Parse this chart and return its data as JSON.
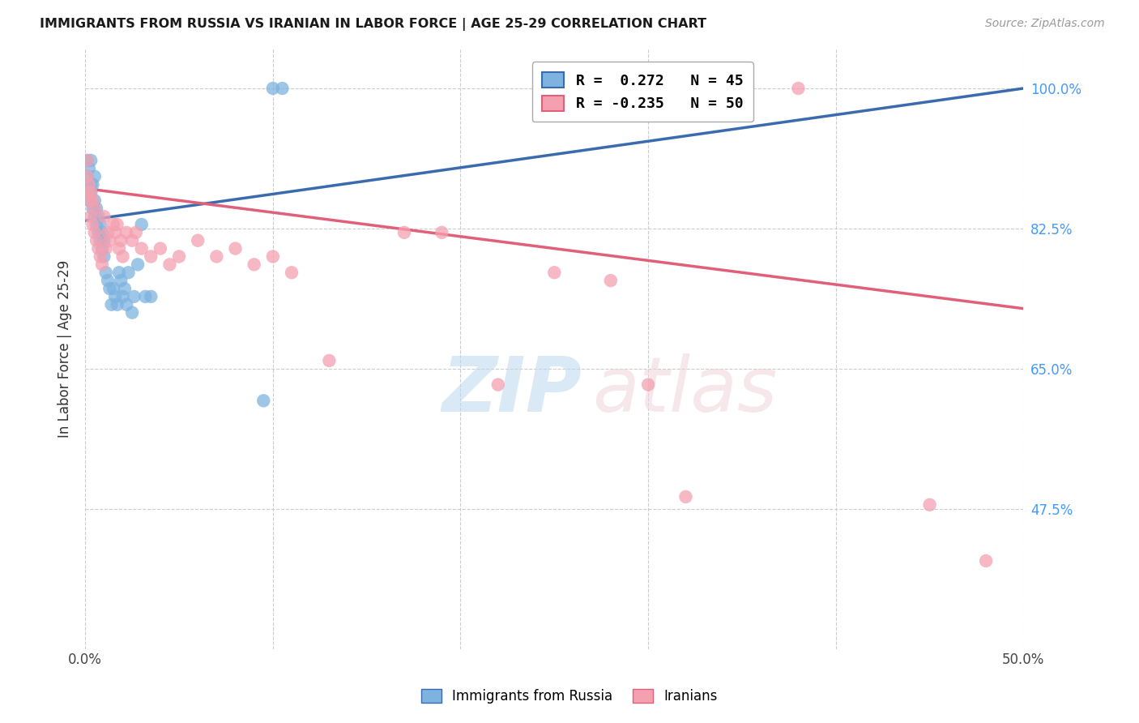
{
  "title": "IMMIGRANTS FROM RUSSIA VS IRANIAN IN LABOR FORCE | AGE 25-29 CORRELATION CHART",
  "source": "Source: ZipAtlas.com",
  "ylabel": "In Labor Force | Age 25-29",
  "xlim": [
    0.0,
    0.5
  ],
  "ylim": [
    0.3,
    1.05
  ],
  "xticks": [
    0.0,
    0.1,
    0.2,
    0.3,
    0.4,
    0.5
  ],
  "xticklabels": [
    "0.0%",
    "",
    "",
    "",
    "",
    "50.0%"
  ],
  "ytick_positions": [
    0.475,
    0.65,
    0.825,
    1.0
  ],
  "ytick_labels": [
    "47.5%",
    "65.0%",
    "82.5%",
    "100.0%"
  ],
  "legend_russia_R": 0.272,
  "legend_russia_N": 45,
  "legend_iran_R": -0.235,
  "legend_iran_N": 50,
  "russia_color": "#7EB3E0",
  "iran_color": "#F4A0B0",
  "russia_line_color": "#3B6BAF",
  "iran_line_color": "#E0607A",
  "russia_trend_x0": 0.0,
  "russia_trend_y0": 0.835,
  "russia_trend_x1": 0.5,
  "russia_trend_y1": 1.0,
  "iran_trend_x0": 0.0,
  "iran_trend_y0": 0.875,
  "iran_trend_x1": 0.5,
  "iran_trend_y1": 0.725,
  "russia_x": [
    0.001,
    0.001,
    0.001,
    0.002,
    0.002,
    0.003,
    0.003,
    0.003,
    0.004,
    0.004,
    0.005,
    0.005,
    0.005,
    0.006,
    0.006,
    0.007,
    0.007,
    0.008,
    0.008,
    0.009,
    0.009,
    0.01,
    0.01,
    0.011,
    0.012,
    0.013,
    0.014,
    0.015,
    0.016,
    0.017,
    0.018,
    0.019,
    0.02,
    0.021,
    0.022,
    0.023,
    0.025,
    0.026,
    0.028,
    0.03,
    0.032,
    0.035,
    0.095,
    0.1,
    0.105
  ],
  "russia_y": [
    0.88,
    0.89,
    0.91,
    0.86,
    0.9,
    0.87,
    0.88,
    0.91,
    0.85,
    0.88,
    0.84,
    0.86,
    0.89,
    0.83,
    0.85,
    0.82,
    0.84,
    0.81,
    0.83,
    0.8,
    0.82,
    0.79,
    0.81,
    0.77,
    0.76,
    0.75,
    0.73,
    0.75,
    0.74,
    0.73,
    0.77,
    0.76,
    0.74,
    0.75,
    0.73,
    0.77,
    0.72,
    0.74,
    0.78,
    0.83,
    0.74,
    0.74,
    0.61,
    1.0,
    1.0
  ],
  "iran_x": [
    0.001,
    0.001,
    0.001,
    0.002,
    0.002,
    0.003,
    0.003,
    0.004,
    0.004,
    0.005,
    0.005,
    0.006,
    0.007,
    0.008,
    0.009,
    0.01,
    0.011,
    0.012,
    0.013,
    0.015,
    0.016,
    0.017,
    0.018,
    0.019,
    0.02,
    0.022,
    0.025,
    0.027,
    0.03,
    0.035,
    0.04,
    0.045,
    0.05,
    0.06,
    0.07,
    0.08,
    0.09,
    0.1,
    0.11,
    0.13,
    0.17,
    0.19,
    0.22,
    0.25,
    0.28,
    0.3,
    0.32,
    0.38,
    0.45,
    0.48
  ],
  "iran_y": [
    0.87,
    0.89,
    0.91,
    0.86,
    0.88,
    0.84,
    0.87,
    0.83,
    0.86,
    0.82,
    0.85,
    0.81,
    0.8,
    0.79,
    0.78,
    0.84,
    0.8,
    0.82,
    0.81,
    0.83,
    0.82,
    0.83,
    0.8,
    0.81,
    0.79,
    0.82,
    0.81,
    0.82,
    0.8,
    0.79,
    0.8,
    0.78,
    0.79,
    0.81,
    0.79,
    0.8,
    0.78,
    0.79,
    0.77,
    0.66,
    0.82,
    0.82,
    0.63,
    0.77,
    0.76,
    0.63,
    0.49,
    1.0,
    0.48,
    0.41
  ]
}
